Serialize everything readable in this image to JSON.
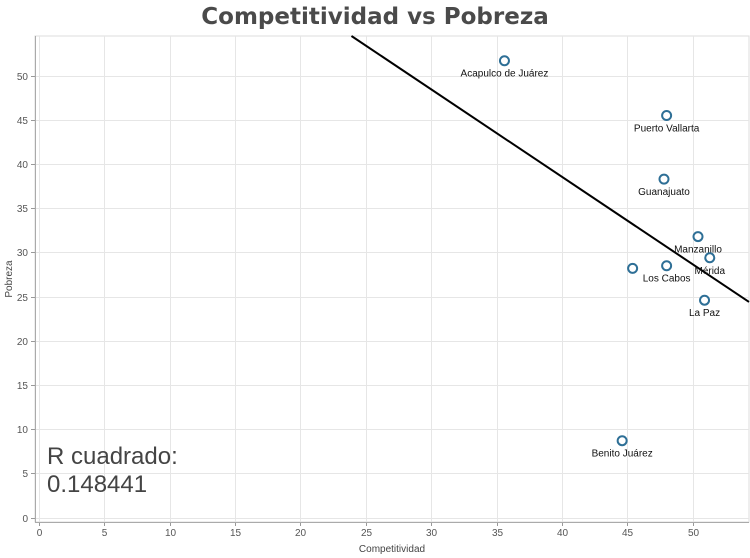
{
  "chart_data": {
    "type": "scatter",
    "title": "Competitividad vs Pobreza",
    "xlabel": "Competitividad",
    "ylabel": "Pobreza",
    "xlim": [
      -0.3,
      54.3
    ],
    "ylim": [
      -0.5,
      54.5
    ],
    "xticks": [
      0,
      5,
      10,
      15,
      20,
      25,
      30,
      35,
      40,
      45,
      50
    ],
    "yticks": [
      0,
      5,
      10,
      15,
      20,
      25,
      30,
      35,
      40,
      45,
      50
    ],
    "grid": true,
    "points": [
      {
        "label": "Acapulco de Juárez",
        "x": 35.6,
        "y": 51.7
      },
      {
        "label": "Puerto Vallarta",
        "x": 48.0,
        "y": 45.5
      },
      {
        "label": "Guanajuato",
        "x": 47.8,
        "y": 38.3
      },
      {
        "label": "Manzanillo",
        "x": 50.4,
        "y": 31.8
      },
      {
        "label": "Mérida",
        "x": 51.3,
        "y": 29.4
      },
      {
        "label": "Los Cabos",
        "x": 48.0,
        "y": 28.5
      },
      {
        "label": "",
        "x": 45.4,
        "y": 28.2
      },
      {
        "label": "La Paz",
        "x": 50.9,
        "y": 24.6
      },
      {
        "label": "Benito Juárez",
        "x": 44.6,
        "y": 8.7
      }
    ],
    "trendline": {
      "x1": 23.9,
      "y1": 54.5,
      "x2": 54.3,
      "y2": 24.4
    },
    "annotation": {
      "line1": "R cuadrado:",
      "line2": "0.148441"
    },
    "colors": {
      "marker": "#2e6f96",
      "trendline": "#000000",
      "grid": "#e6e6e6",
      "title": "#4a4a4a"
    }
  }
}
